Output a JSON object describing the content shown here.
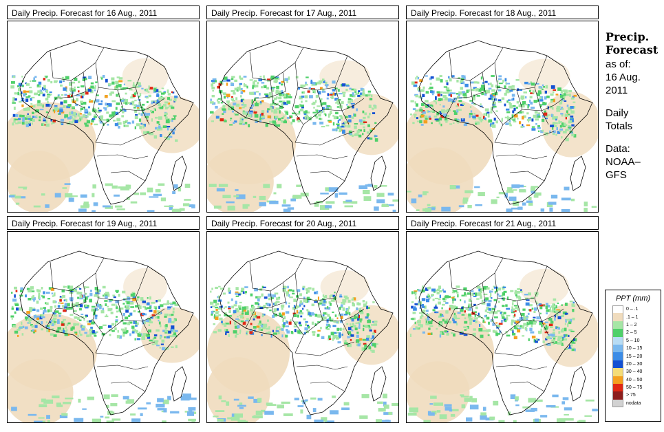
{
  "panels": [
    {
      "title": "Daily Precip. Forecast for  16 Aug., 2011",
      "seed": 11
    },
    {
      "title": "Daily Precip. Forecast for  17 Aug., 2011",
      "seed": 23
    },
    {
      "title": "Daily Precip. Forecast for  18 Aug., 2011",
      "seed": 37
    },
    {
      "title": "Daily Precip. Forecast for  19 Aug., 2011",
      "seed": 41
    },
    {
      "title": "Daily Precip. Forecast for  20 Aug., 2011",
      "seed": 53
    },
    {
      "title": "Daily Precip. Forecast for  21 Aug., 2011",
      "seed": 67
    }
  ],
  "side": {
    "heading1": "Precip.",
    "heading2": "Forecast",
    "asof": "as of:",
    "date1": "16 Aug.",
    "date2": "2011",
    "daily1": "Daily",
    "daily2": "Totals",
    "data1": "Data:",
    "data2": "NOAA–",
    "data3": "GFS"
  },
  "legend": {
    "title": "PPT (mm)",
    "items": [
      {
        "label": "0 – .1",
        "color": "#ffffff"
      },
      {
        "label": ".1 – 1",
        "color": "#f0dcbe"
      },
      {
        "label": "1 – 2",
        "color": "#a6e6a6"
      },
      {
        "label": "2 – 5",
        "color": "#4fd06a"
      },
      {
        "label": "5 – 10",
        "color": "#b8dcf4"
      },
      {
        "label": "10 – 15",
        "color": "#7ab8ee"
      },
      {
        "label": "15 – 20",
        "color": "#3c8ce6"
      },
      {
        "label": "20 – 30",
        "color": "#1450d2"
      },
      {
        "label": "30 – 40",
        "color": "#f4dc78"
      },
      {
        "label": "40 – 50",
        "color": "#f4a020"
      },
      {
        "label": "50 – 75",
        "color": "#e02814"
      },
      {
        "label": "> 75",
        "color": "#8c1e1e"
      },
      {
        "label": "nodata",
        "color": "#d2d2d2"
      }
    ]
  }
}
